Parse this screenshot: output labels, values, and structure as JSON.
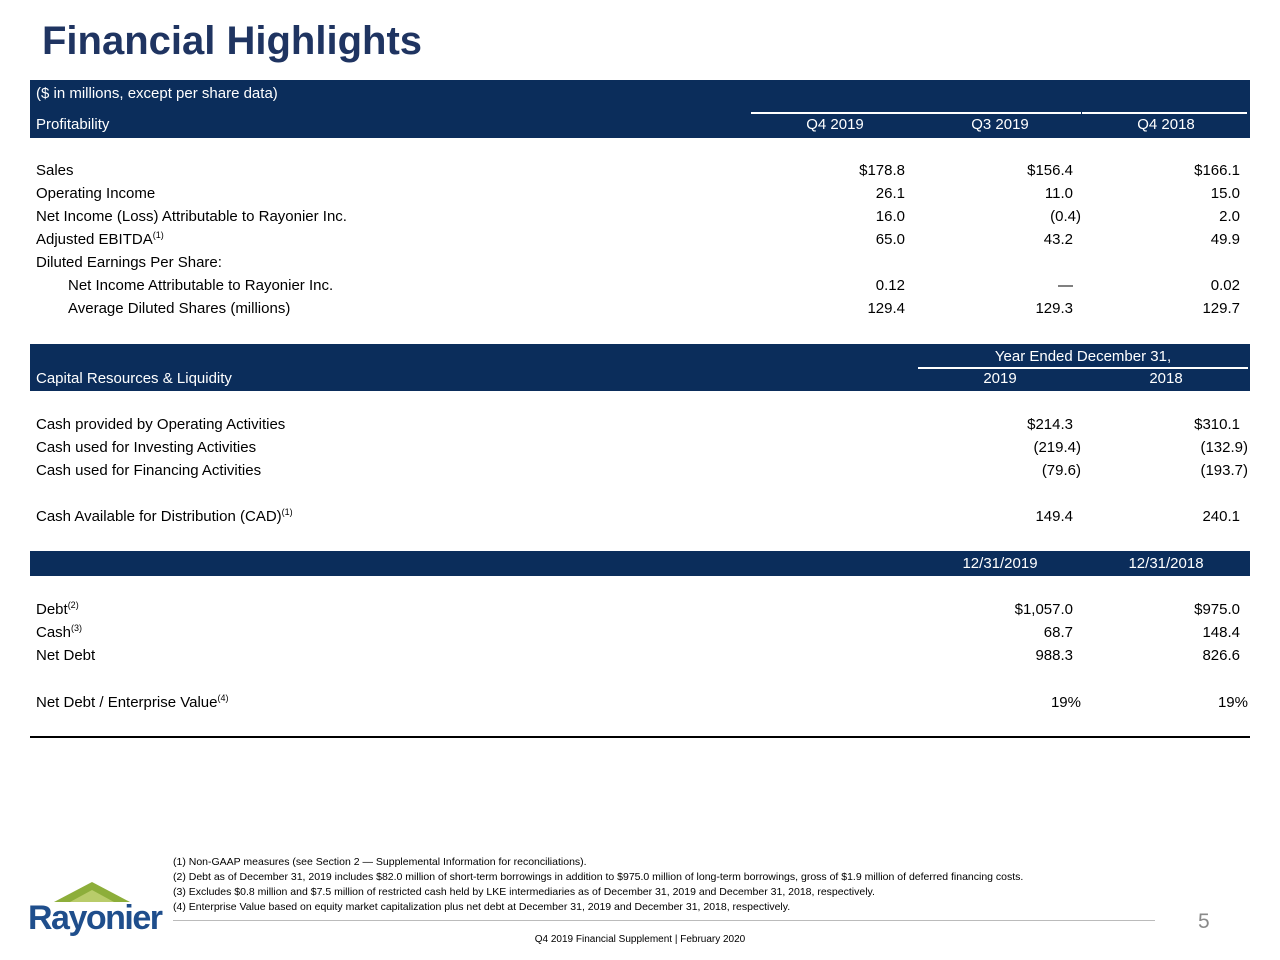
{
  "title": "Financial Highlights",
  "units_note": "($ in millions, except per share data)",
  "profitability": {
    "header": "Profitability",
    "columns": [
      "Q4 2019",
      "Q3 2019",
      "Q4 2018"
    ],
    "rows": [
      {
        "label": "Sales",
        "cells": [
          "$178.8",
          "$156.4",
          "$166.1"
        ]
      },
      {
        "label": "Operating Income",
        "cells": [
          "26.1",
          "11.0",
          "15.0"
        ]
      },
      {
        "label": "Net Income (Loss) Attributable to Rayonier Inc.",
        "cells": [
          "16.0",
          "(0.4)",
          "2.0"
        ]
      },
      {
        "label": "Adjusted EBITDA",
        "note": "(1)",
        "cells": [
          "65.0",
          "43.2",
          "49.9"
        ]
      },
      {
        "label": "Diluted Earnings Per Share:",
        "rows": [
          {
            "label": "Net Income Attributable to Rayonier Inc.",
            "cells": [
              "0.12",
              "—",
              "0.02"
            ]
          },
          {
            "label": "Average Diluted Shares (millions)",
            "cells": [
              "129.4",
              "129.3",
              "129.7"
            ]
          }
        ]
      }
    ]
  },
  "capital": {
    "header": "Capital Resources & Liquidity",
    "group_header": "Year Ended December 31,",
    "columns": [
      "2019",
      "2018"
    ],
    "row_groups": [
      [
        {
          "label": "Cash provided by Operating Activities",
          "cells": [
            "$214.3",
            "$310.1"
          ]
        },
        {
          "label": "Cash used for Investing Activities",
          "cells": [
            "(219.4)",
            "(132.9)"
          ]
        },
        {
          "label": "Cash used for Financing Activities",
          "cells": [
            "(79.6)",
            "(193.7)"
          ]
        }
      ],
      [
        {
          "label": "Cash Available for Distribution (CAD)",
          "note": "(1)",
          "cells": [
            "149.4",
            "240.1"
          ]
        }
      ]
    ]
  },
  "balance": {
    "columns": [
      "12/31/2019",
      "12/31/2018"
    ],
    "row_groups": [
      [
        {
          "label": "Debt",
          "note": "(2)",
          "cells": [
            "$1,057.0",
            "$975.0"
          ]
        },
        {
          "label": "Cash",
          "note": "(3)",
          "cells": [
            "68.7",
            "148.4"
          ]
        },
        {
          "label": "Net Debt",
          "cells": [
            "988.3",
            "826.6"
          ]
        }
      ],
      [
        {
          "label": "Net Debt / Enterprise Value",
          "note": "(4)",
          "cells": [
            "19%",
            "19%"
          ]
        }
      ]
    ]
  },
  "footnotes": [
    "(1) Non-GAAP measures (see Section 2 — Supplemental Information for reconciliations).",
    "(2) Debt as of December 31, 2019 includes $82.0 million of short-term borrowings in addition to $975.0 million of long-term borrowings, gross of $1.9 million of deferred financing costs.",
    "(3) Excludes $0.8 million and $7.5 million of restricted cash held by LKE intermediaries as of December 31, 2019 and December 31, 2018, respectively.",
    "(4) Enterprise Value based on equity market capitalization plus net debt at December 31, 2019 and December 31, 2018, respectively."
  ],
  "logo": "Rayonier",
  "page_number": "5",
  "footer": "Q4 2019 Financial Supplement | February 2020"
}
